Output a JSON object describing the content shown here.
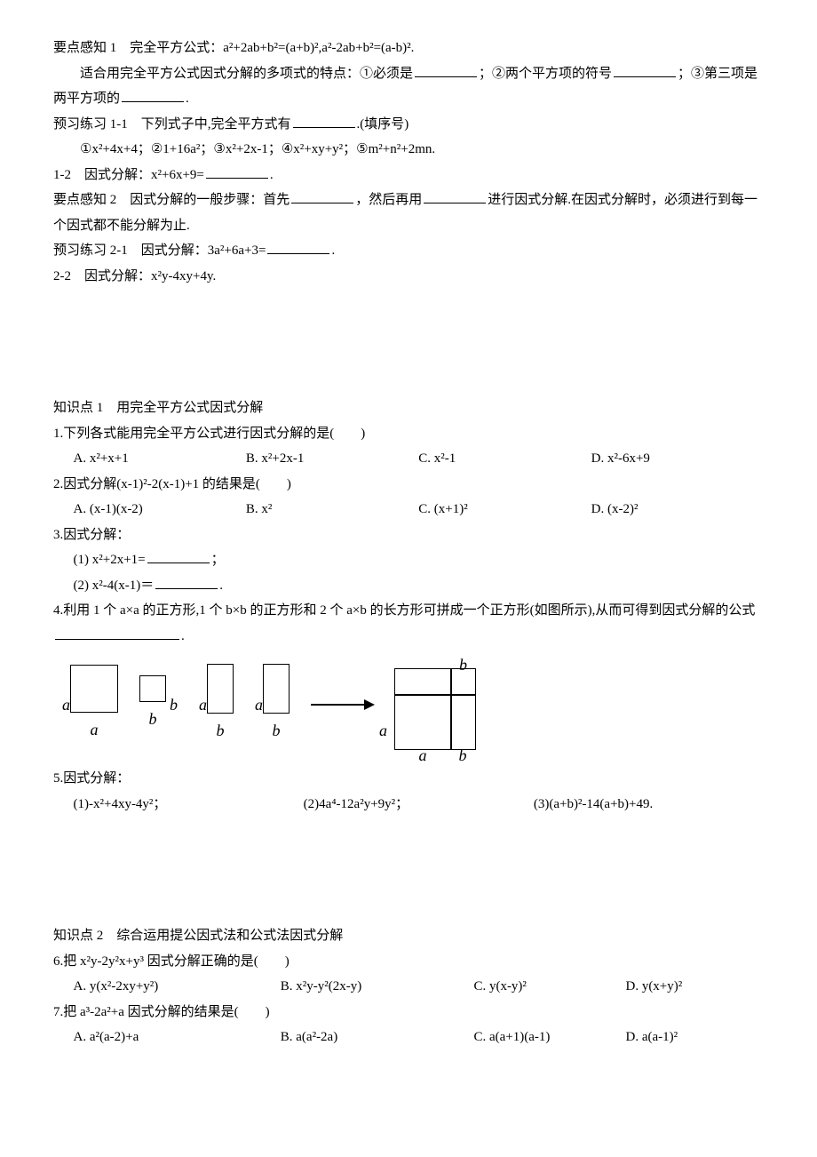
{
  "section1": {
    "yd1_prefix": "要点感知 1　完全平方公式：",
    "yd1_formula": "a²+2ab+b²=(a+b)²,a²-2ab+b²=(a-b)².",
    "yd1_line2a": "适合用完全平方公式因式分解的多项式的特点：①必须是",
    "yd1_line2b": "；②两个平方项的符号",
    "yd1_line2c": "；③第三项是两平方项的",
    "yd1_line2d": ".",
    "yx11_prefix": "预习练习 1-1　下列式子中,完全平方式有",
    "yx11_suffix": ".(填序号)",
    "yx11_items": "①x²+4x+4；②1+16a²；③x²+2x-1；④x²+xy+y²；⑤m²+n²+2mn.",
    "yx12_prefix": "1-2　因式分解：x²+6x+9=",
    "yx12_suffix": ".",
    "yd2_a": "要点感知 2　因式分解的一般步骤：首先",
    "yd2_b": "，然后再用",
    "yd2_c": "进行因式分解.在因式分解时，必须进行到每一个因式都不能分解为止.",
    "yx21_prefix": "预习练习 2-1　因式分解：3a²+6a+3=",
    "yx21_suffix": ".",
    "yx22": "2-2　因式分解：x²y-4xy+4y."
  },
  "kp1": {
    "title": "知识点 1　用完全平方公式因式分解",
    "q1": "1.下列各式能用完全平方公式进行因式分解的是(　　)",
    "q1opts": {
      "a": "A. x²+x+1",
      "b": "B. x²+2x-1",
      "c": "C. x²-1",
      "d": "D. x²-6x+9"
    },
    "q2": "2.因式分解(x-1)²-2(x-1)+1 的结果是(　　)",
    "q2opts": {
      "a": "A. (x-1)(x-2)",
      "b": "B. x²",
      "c": "C. (x+1)²",
      "d": "D. (x-2)²"
    },
    "q3": "3.因式分解：",
    "q3_1a": "(1)  x²+2x+1=",
    "q3_1b": "；",
    "q3_2a": "(2)  x²-4(x-1)＝",
    "q3_2b": ".",
    "q4a": "4.利用 1 个 a×a 的正方形,1 个 b×b 的正方形和 2 个 a×b 的长方形可拼成一个正方形(如图所示),从而可得到因式分解的公式",
    "q4b": ".",
    "q5": "5.因式分解：",
    "q5_1": "(1)-x²+4xy-4y²；",
    "q5_2": "(2)4a⁴-12a²y+9y²；",
    "q5_3": "(3)(a+b)²-14(a+b)+49."
  },
  "kp2": {
    "title": "知识点 2　综合运用提公因式法和公式法因式分解",
    "q6": "6.把 x²y-2y²x+y³ 因式分解正确的是(　　)",
    "q6opts": {
      "a": "A. y(x²-2xy+y²)",
      "b": "B. x²y-y²(2x-y)",
      "c": "C. y(x-y)²",
      "d": "D. y(x+y)²"
    },
    "q7": "7.把 a³-2a²+a 因式分解的结果是(　　)",
    "q7opts": {
      "a": "A. a²(a-2)+a",
      "b": "B. a(a²-2a)",
      "c": "C. a(a+1)(a-1)",
      "d": "D. a(a-1)²"
    }
  },
  "diagram": {
    "a": "a",
    "b": "b",
    "sq_a_size": 52,
    "sq_b_size": 28,
    "rect_w": 28,
    "rect_h": 54
  }
}
